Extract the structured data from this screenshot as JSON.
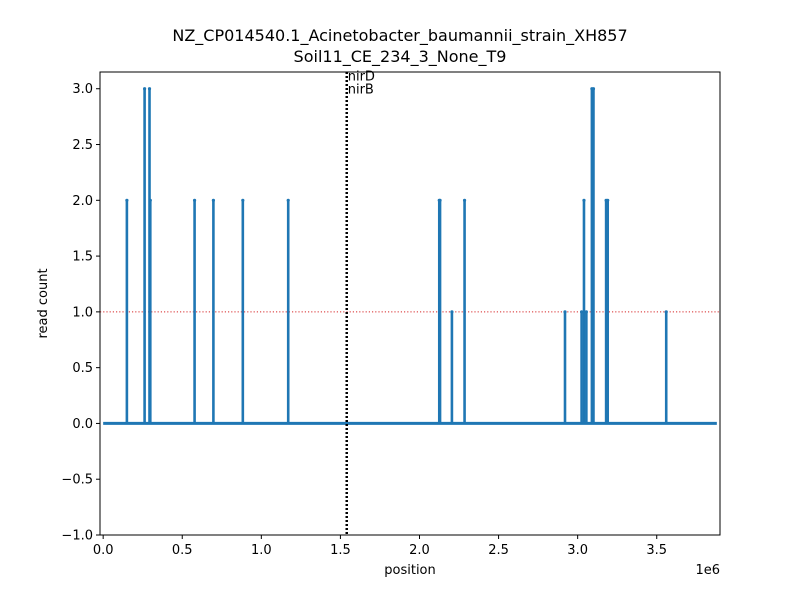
{
  "chart_data": {
    "type": "line",
    "title_line1": "NZ_CP014540.1_Acinetobacter_baumannii_strain_XH857",
    "title_line2": "Soil11_CE_234_3_None_T9",
    "xlabel": "position",
    "ylabel": "read count",
    "x_offset_label": "1e6",
    "xlim": [
      -20000,
      3900000
    ],
    "ylim": [
      -1.0,
      3.15
    ],
    "x_ticks": [
      {
        "value": 0,
        "label": "0.0"
      },
      {
        "value": 500000,
        "label": "0.5"
      },
      {
        "value": 1000000,
        "label": "1.0"
      },
      {
        "value": 1500000,
        "label": "1.5"
      },
      {
        "value": 2000000,
        "label": "2.0"
      },
      {
        "value": 2500000,
        "label": "2.5"
      },
      {
        "value": 3000000,
        "label": "3.0"
      },
      {
        "value": 3500000,
        "label": "3.5"
      }
    ],
    "y_ticks": [
      {
        "value": -1.0,
        "label": "−1.0"
      },
      {
        "value": -0.5,
        "label": "−0.5"
      },
      {
        "value": 0.0,
        "label": "0.0"
      },
      {
        "value": 0.5,
        "label": "0.5"
      },
      {
        "value": 1.0,
        "label": "1.0"
      },
      {
        "value": 1.5,
        "label": "1.5"
      },
      {
        "value": 2.0,
        "label": "2.0"
      },
      {
        "value": 2.5,
        "label": "2.5"
      },
      {
        "value": 3.0,
        "label": "3.0"
      }
    ],
    "series_color": "#1f77b4",
    "baseline": {
      "x_start": 0,
      "x_end": 3880000,
      "y": 0
    },
    "peaks": [
      {
        "x": 150000,
        "y": 2
      },
      {
        "x": 262000,
        "y": 3
      },
      {
        "x": 293000,
        "y": 3
      },
      {
        "x": 298000,
        "y": 2
      },
      {
        "x": 578000,
        "y": 2
      },
      {
        "x": 697000,
        "y": 2
      },
      {
        "x": 883000,
        "y": 2
      },
      {
        "x": 1170000,
        "y": 2
      },
      {
        "x": 2125000,
        "y": 2
      },
      {
        "x": 2130000,
        "y": 2
      },
      {
        "x": 2205000,
        "y": 1
      },
      {
        "x": 2285000,
        "y": 2
      },
      {
        "x": 2920000,
        "y": 1
      },
      {
        "x": 3025000,
        "y": 1
      },
      {
        "x": 3040000,
        "y": 2
      },
      {
        "x": 3055000,
        "y": 1
      },
      {
        "x": 3090000,
        "y": 3
      },
      {
        "x": 3100000,
        "y": 3
      },
      {
        "x": 3180000,
        "y": 2
      },
      {
        "x": 3190000,
        "y": 2
      },
      {
        "x": 3560000,
        "y": 1
      }
    ],
    "threshold_line": {
      "y": 1.0,
      "color": "#d62728",
      "style": "dotted"
    },
    "gene_marker": {
      "x": 1540000,
      "color": "#000000",
      "style": "dotted",
      "labels": [
        "nirD",
        "nirB"
      ]
    }
  }
}
